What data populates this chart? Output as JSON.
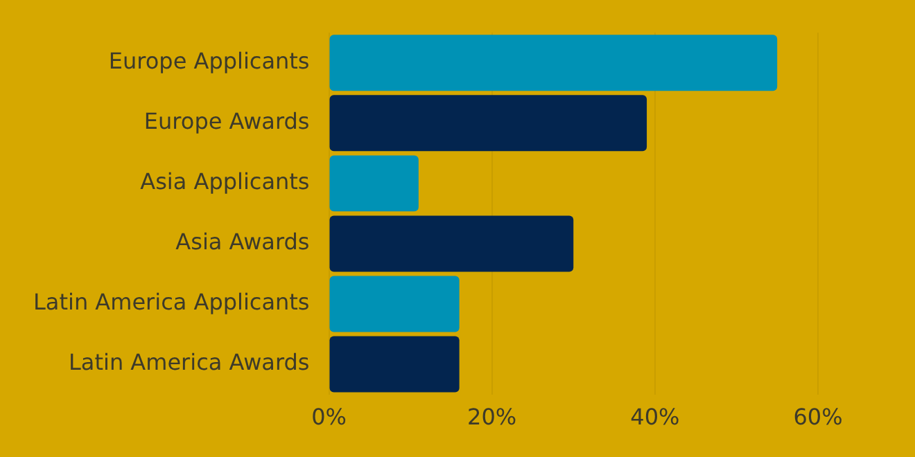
{
  "chart_data": {
    "type": "bar",
    "orientation": "horizontal",
    "categories": [
      "Europe Applicants",
      "Europe Awards",
      "Asia Applicants",
      "Asia Awards",
      "Latin America Applicants",
      "Latin America Awards"
    ],
    "values": [
      55,
      39,
      11,
      30,
      16,
      16
    ],
    "colors": [
      "#0092b5",
      "#03254f",
      "#0092b5",
      "#03254f",
      "#0092b5",
      "#03254f"
    ],
    "xlim": [
      0,
      60
    ],
    "xticks": [
      {
        "value": 0,
        "label": "0%"
      },
      {
        "value": 20,
        "label": "20%"
      },
      {
        "value": 40,
        "label": "40%"
      },
      {
        "value": 60,
        "label": "60%"
      }
    ],
    "grid": "x"
  }
}
